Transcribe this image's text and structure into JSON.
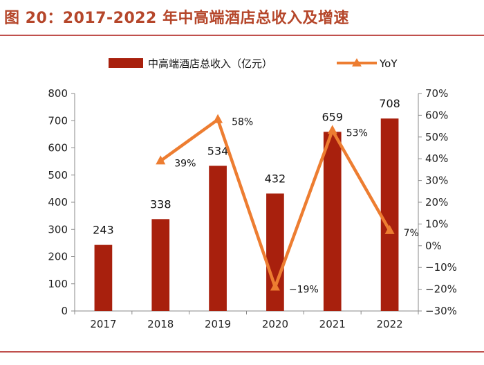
{
  "header": {
    "title": "图 20：2017-2022 年中高端酒店总收入及增速"
  },
  "colors": {
    "bar": "#a8200d",
    "line": "#ed7d31",
    "title": "#b5462a",
    "rule": "#c0504d",
    "axis": "#888888"
  },
  "chart_data": {
    "type": "bar",
    "title": "图 20：2017-2022 年中高端酒店总收入及增速",
    "categories": [
      "2017",
      "2018",
      "2019",
      "2020",
      "2021",
      "2022"
    ],
    "series": [
      {
        "name": "中高端酒店总收入（亿元）",
        "type": "bar",
        "axis": "left",
        "values": [
          243,
          338,
          534,
          432,
          659,
          708
        ],
        "labels": [
          "243",
          "338",
          "534",
          "432",
          "659",
          "708"
        ]
      },
      {
        "name": "YoY",
        "type": "line",
        "axis": "right",
        "values": [
          null,
          39,
          58,
          -19,
          53,
          7
        ],
        "labels": [
          "",
          "39%",
          "58%",
          "−19%",
          "53%",
          "7%"
        ]
      }
    ],
    "ylim_left": [
      0,
      800
    ],
    "yticks_left": [
      "0",
      "100",
      "200",
      "300",
      "400",
      "500",
      "600",
      "700",
      "800"
    ],
    "ylim_right": [
      -30,
      70
    ],
    "yticks_right": [
      "−30%",
      "−20%",
      "−10%",
      "0%",
      "10%",
      "20%",
      "30%",
      "40%",
      "50%",
      "60%",
      "70%"
    ],
    "legend": [
      "中高端酒店总收入（亿元）",
      "YoY"
    ],
    "legend_position": "top"
  }
}
